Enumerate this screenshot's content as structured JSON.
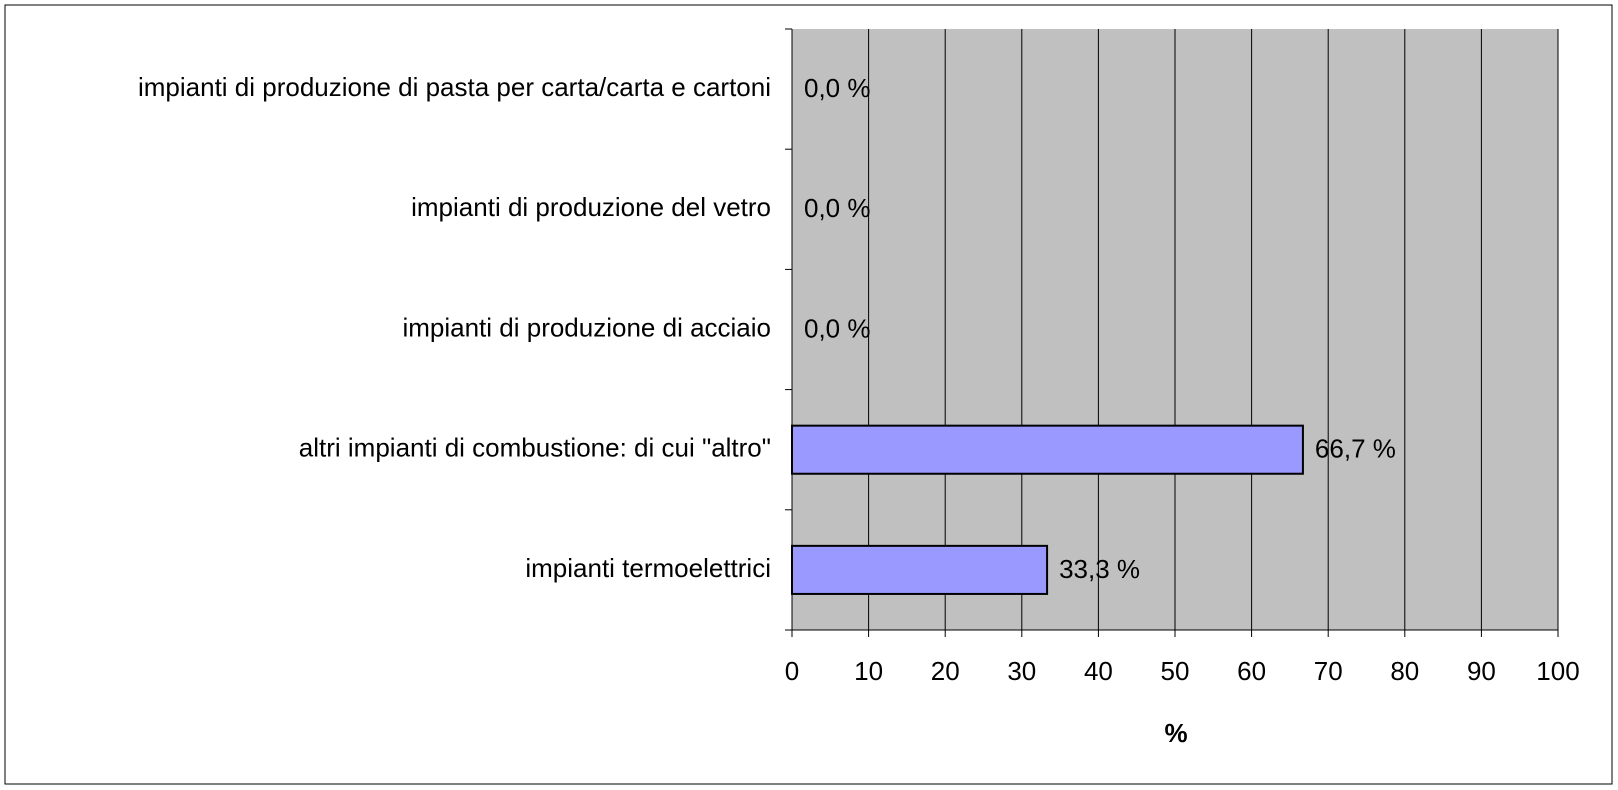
{
  "chart_data": {
    "type": "barh",
    "categories": [
      "impianti di produzione di pasta per carta/carta e cartoni",
      "impianti di produzione del vetro",
      "impianti di produzione di acciaio",
      "altri impianti di combustione: di cui \"altro\"",
      "impianti termoelettrici"
    ],
    "values": [
      0,
      0,
      0,
      66.7,
      33.3
    ],
    "value_labels": [
      "0,0 %",
      "0,0 %",
      "0,0 %",
      "66,7 %",
      "33,3 %"
    ],
    "color": "#9999ff",
    "plot_background": "#c0c0c0",
    "xlabel": "%",
    "xlim": [
      0,
      100
    ],
    "xticks": [
      0,
      10,
      20,
      30,
      40,
      50,
      60,
      70,
      80,
      90,
      100
    ],
    "grid": true
  }
}
